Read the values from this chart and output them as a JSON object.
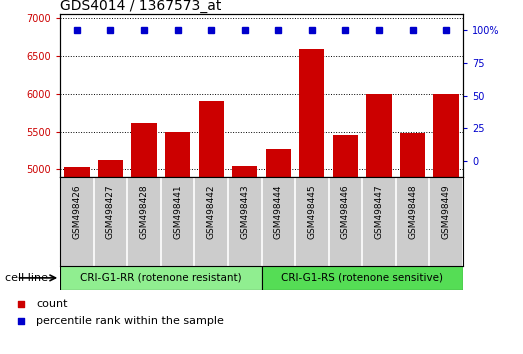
{
  "title": "GDS4014 / 1367573_at",
  "categories": [
    "GSM498426",
    "GSM498427",
    "GSM498428",
    "GSM498441",
    "GSM498442",
    "GSM498443",
    "GSM498444",
    "GSM498445",
    "GSM498446",
    "GSM498447",
    "GSM498448",
    "GSM498449"
  ],
  "count_values": [
    5030,
    5130,
    5610,
    5490,
    5900,
    5040,
    5270,
    6590,
    5460,
    5990,
    5480,
    6000
  ],
  "percentile_values": [
    100,
    100,
    100,
    100,
    100,
    100,
    100,
    100,
    100,
    100,
    100,
    100
  ],
  "bar_color": "#cc0000",
  "dot_color": "#0000cc",
  "ylim_left": [
    4900,
    7050
  ],
  "ylim_right": [
    -12.5,
    112.5
  ],
  "yticks_left": [
    5000,
    5500,
    6000,
    6500,
    7000
  ],
  "yticks_right": [
    0,
    25,
    50,
    75,
    100
  ],
  "group1_label": "CRI-G1-RR (rotenone resistant)",
  "group2_label": "CRI-G1-RS (rotenone sensitive)",
  "group1_indices": [
    0,
    1,
    2,
    3,
    4,
    5
  ],
  "group2_indices": [
    6,
    7,
    8,
    9,
    10,
    11
  ],
  "group1_color": "#90ee90",
  "group2_color": "#55dd55",
  "cell_line_label": "cell line",
  "legend1_label": "count",
  "legend2_label": "percentile rank within the sample",
  "bg_color": "#cccccc",
  "plot_bg": "#ffffff",
  "title_fontsize": 10,
  "tick_fontsize": 7,
  "label_fontsize": 8
}
